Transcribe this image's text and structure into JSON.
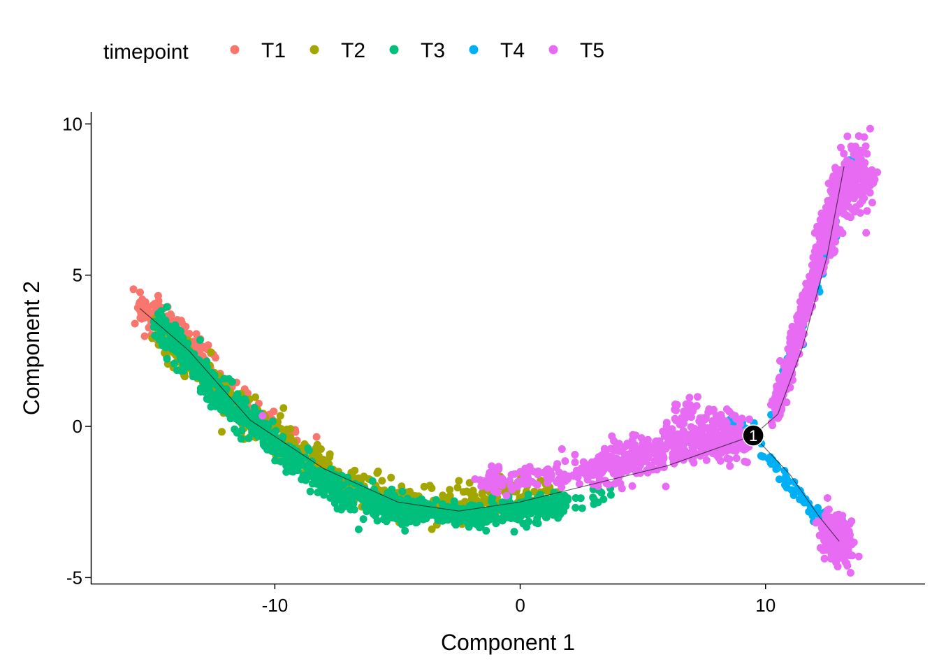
{
  "chart_data": {
    "type": "scatter",
    "xlabel": "Component 1",
    "ylabel": "Component 2",
    "xlim": [
      -17.5,
      16.5
    ],
    "ylim": [
      -5.2,
      10.4
    ],
    "x_ticks": [
      -10,
      0,
      10
    ],
    "x_tick_labels": [
      "-10",
      "0",
      "10"
    ],
    "y_ticks": [
      -5,
      0,
      5,
      10
    ],
    "y_tick_labels": [
      "-5",
      "0",
      "5",
      "10"
    ],
    "grid": false,
    "legend": {
      "title": "timepoint",
      "placement": "top-left",
      "entries": [
        {
          "name": "T1",
          "color": "#F8766D"
        },
        {
          "name": "T2",
          "color": "#A3A500"
        },
        {
          "name": "T3",
          "color": "#00BF7D"
        },
        {
          "name": "T4",
          "color": "#00B0F6"
        },
        {
          "name": "T5",
          "color": "#E76BF3"
        }
      ]
    },
    "trajectory": {
      "branch_point": {
        "x": 9.5,
        "y": -0.3,
        "label": "1"
      },
      "segments": [
        [
          [
            -15.5,
            3.9
          ],
          [
            -13.5,
            2.5
          ],
          [
            -11,
            0.2
          ],
          [
            -8,
            -1.4
          ],
          [
            -5,
            -2.5
          ],
          [
            -2.5,
            -2.8
          ],
          [
            0,
            -2.5
          ],
          [
            3,
            -1.9
          ],
          [
            6,
            -1.3
          ],
          [
            9.5,
            -0.3
          ]
        ],
        [
          [
            9.5,
            -0.3
          ],
          [
            10.5,
            0.4
          ],
          [
            11.5,
            2.6
          ],
          [
            12.5,
            5.6
          ],
          [
            13.2,
            8.6
          ]
        ],
        [
          [
            9.5,
            -0.3
          ],
          [
            11,
            -1.6
          ],
          [
            12.2,
            -3.0
          ],
          [
            13,
            -3.8
          ]
        ]
      ]
    },
    "series": [
      {
        "name": "T1",
        "color": "#F8766D",
        "segments": [
          {
            "x0": -15.6,
            "x1": -12.5,
            "y": [
              3.85,
              3.55,
              3.1,
              2.55,
              1.9
            ],
            "spread": 0.32,
            "n": 180
          },
          {
            "x0": -12.5,
            "x1": -9.0,
            "y": [
              1.9,
              1.2,
              0.6,
              0.05,
              -0.5
            ],
            "spread": 0.25,
            "n": 40
          }
        ],
        "points": [
          {
            "x": -8.3,
            "y": -0.35
          },
          {
            "x": -12.7,
            "y": 1.8
          },
          {
            "x": -15.4,
            "y": 4.2
          }
        ]
      },
      {
        "name": "T2",
        "color": "#A3A500",
        "segments": [
          {
            "x0": -14.8,
            "x1": -10.0,
            "y": [
              3.2,
              2.3,
              1.3,
              0.4,
              -0.4
            ],
            "spread": 0.32,
            "n": 260
          },
          {
            "x0": -10.0,
            "x1": -4.0,
            "y": [
              -0.4,
              -1.2,
              -1.9,
              -2.3,
              -2.6
            ],
            "spread": 0.3,
            "n": 240
          },
          {
            "x0": -4.0,
            "x1": 1.5,
            "y": [
              -2.6,
              -2.5,
              -2.3,
              -2.2,
              -2.2
            ],
            "spread": 0.3,
            "n": 110
          }
        ],
        "points": [
          {
            "x": -12.6,
            "y": 2.45
          },
          {
            "x": -9.5,
            "y": -0.1
          },
          {
            "x": -1.5,
            "y": -1.85
          },
          {
            "x": -2.5,
            "y": -1.8
          }
        ]
      },
      {
        "name": "T3",
        "color": "#00BF7D",
        "segments": [
          {
            "x0": -14.8,
            "x1": -10.0,
            "y": [
              3.4,
              2.3,
              1.2,
              0.3,
              -0.6
            ],
            "spread": 0.3,
            "n": 330
          },
          {
            "x0": -10.0,
            "x1": -4.5,
            "y": [
              -0.6,
              -1.5,
              -2.2,
              -2.6,
              -2.8
            ],
            "spread": 0.25,
            "n": 380
          },
          {
            "x0": -4.5,
            "x1": 2.0,
            "y": [
              -2.8,
              -2.95,
              -2.9,
              -2.7,
              -2.55
            ],
            "spread": 0.22,
            "n": 320
          },
          {
            "x0": 2.0,
            "x1": 4.0,
            "y": [
              -2.55,
              -2.4,
              -2.3,
              -2.3,
              -2.4
            ],
            "spread": 0.15,
            "n": 14
          }
        ],
        "points": [
          {
            "x": -14.4,
            "y": 3.95
          }
        ]
      },
      {
        "name": "T4",
        "color": "#00B0F6",
        "segments": [
          {
            "x0": 8.5,
            "x1": 9.5,
            "y": [
              -0.1,
              0.0,
              0.05,
              0.0,
              -0.2
            ],
            "spread": 0.2,
            "n": 18
          },
          {
            "x0": 10.3,
            "x1": 13.5,
            "y": [
              0.6,
              2.4,
              4.4,
              6.6,
              8.8
            ],
            "spread": 0.25,
            "n": 110
          },
          {
            "x0": 9.8,
            "x1": 13.2,
            "y": [
              -0.7,
              -1.6,
              -2.4,
              -3.0,
              -3.4
            ],
            "spread": 0.12,
            "n": 60
          }
        ],
        "points": []
      },
      {
        "name": "T5",
        "color": "#E76BF3",
        "segments": [
          {
            "x0": -1.8,
            "x1": 3.0,
            "y": [
              -1.95,
              -1.8,
              -1.65,
              -1.5,
              -1.4
            ],
            "spread": 0.22,
            "n": 110
          },
          {
            "x0": 3.0,
            "x1": 9.3,
            "y": [
              -1.4,
              -1.1,
              -0.8,
              -0.5,
              -0.35
            ],
            "spread": 0.32,
            "n": 450
          },
          {
            "x0": 6.0,
            "x1": 8.5,
            "y": [
              0.0,
              0.3,
              0.5,
              0.45,
              0.3
            ],
            "spread": 0.28,
            "n": 60
          },
          {
            "x0": 10.3,
            "x1": 13.2,
            "y": [
              0.3,
              2.2,
              4.2,
              6.4,
              8.2
            ],
            "spread": 0.3,
            "n": 360
          },
          {
            "x0": 12.3,
            "x1": 14.2,
            "y": [
              6.3,
              7.2,
              7.9,
              8.3,
              8.5
            ],
            "spread": 0.55,
            "n": 260
          },
          {
            "x0": 12.4,
            "x1": 13.4,
            "y": [
              -3.3,
              -3.5,
              -3.7,
              -3.8,
              -3.85
            ],
            "spread": 0.35,
            "n": 220
          }
        ],
        "points": [
          {
            "x": -10.5,
            "y": 0.35
          },
          {
            "x": 1.7,
            "y": -0.75
          },
          {
            "x": 6.9,
            "y": 0.95
          },
          {
            "x": 13.8,
            "y": 9.6
          },
          {
            "x": 13.8,
            "y": -4.3
          },
          {
            "x": 14.1,
            "y": 6.4
          }
        ]
      }
    ]
  }
}
